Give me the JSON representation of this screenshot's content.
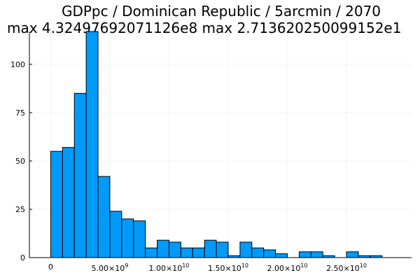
{
  "chart_data": {
    "type": "bar",
    "title_line1": "GDPpc / Dominican Republic / 5arcmin / 2070",
    "title_line2": "max 4.32497692071126e8  max 2.713620250099152e1",
    "bin_width": 1000000000,
    "bin_start": 0,
    "values": [
      55,
      57,
      85,
      117,
      42,
      24,
      20,
      19,
      5,
      9,
      8,
      5,
      5,
      9,
      8,
      1,
      8,
      5,
      4,
      2,
      0,
      3,
      3,
      1,
      0,
      3,
      1,
      1
    ],
    "xlim": [
      -1800000000,
      30500000000
    ],
    "ylim": [
      0,
      117
    ],
    "x_ticks": [
      {
        "value": 0,
        "mantissa": "0",
        "exponent": ""
      },
      {
        "value": 5000000000,
        "mantissa": "5.00×10",
        "exponent": "9"
      },
      {
        "value": 10000000000,
        "mantissa": "1.00×10",
        "exponent": "10"
      },
      {
        "value": 15000000000,
        "mantissa": "1.50×10",
        "exponent": "10"
      },
      {
        "value": 20000000000,
        "mantissa": "2.00×10",
        "exponent": "10"
      },
      {
        "value": 25000000000,
        "mantissa": "2.50×10",
        "exponent": "10"
      }
    ],
    "y_ticks": [
      {
        "value": 0,
        "label": "0"
      },
      {
        "value": 25,
        "label": "25"
      },
      {
        "value": 50,
        "label": "50"
      },
      {
        "value": 75,
        "label": "75"
      },
      {
        "value": 100,
        "label": "100"
      }
    ],
    "grid": true,
    "legend": "none",
    "bar_color": "#009af9"
  }
}
